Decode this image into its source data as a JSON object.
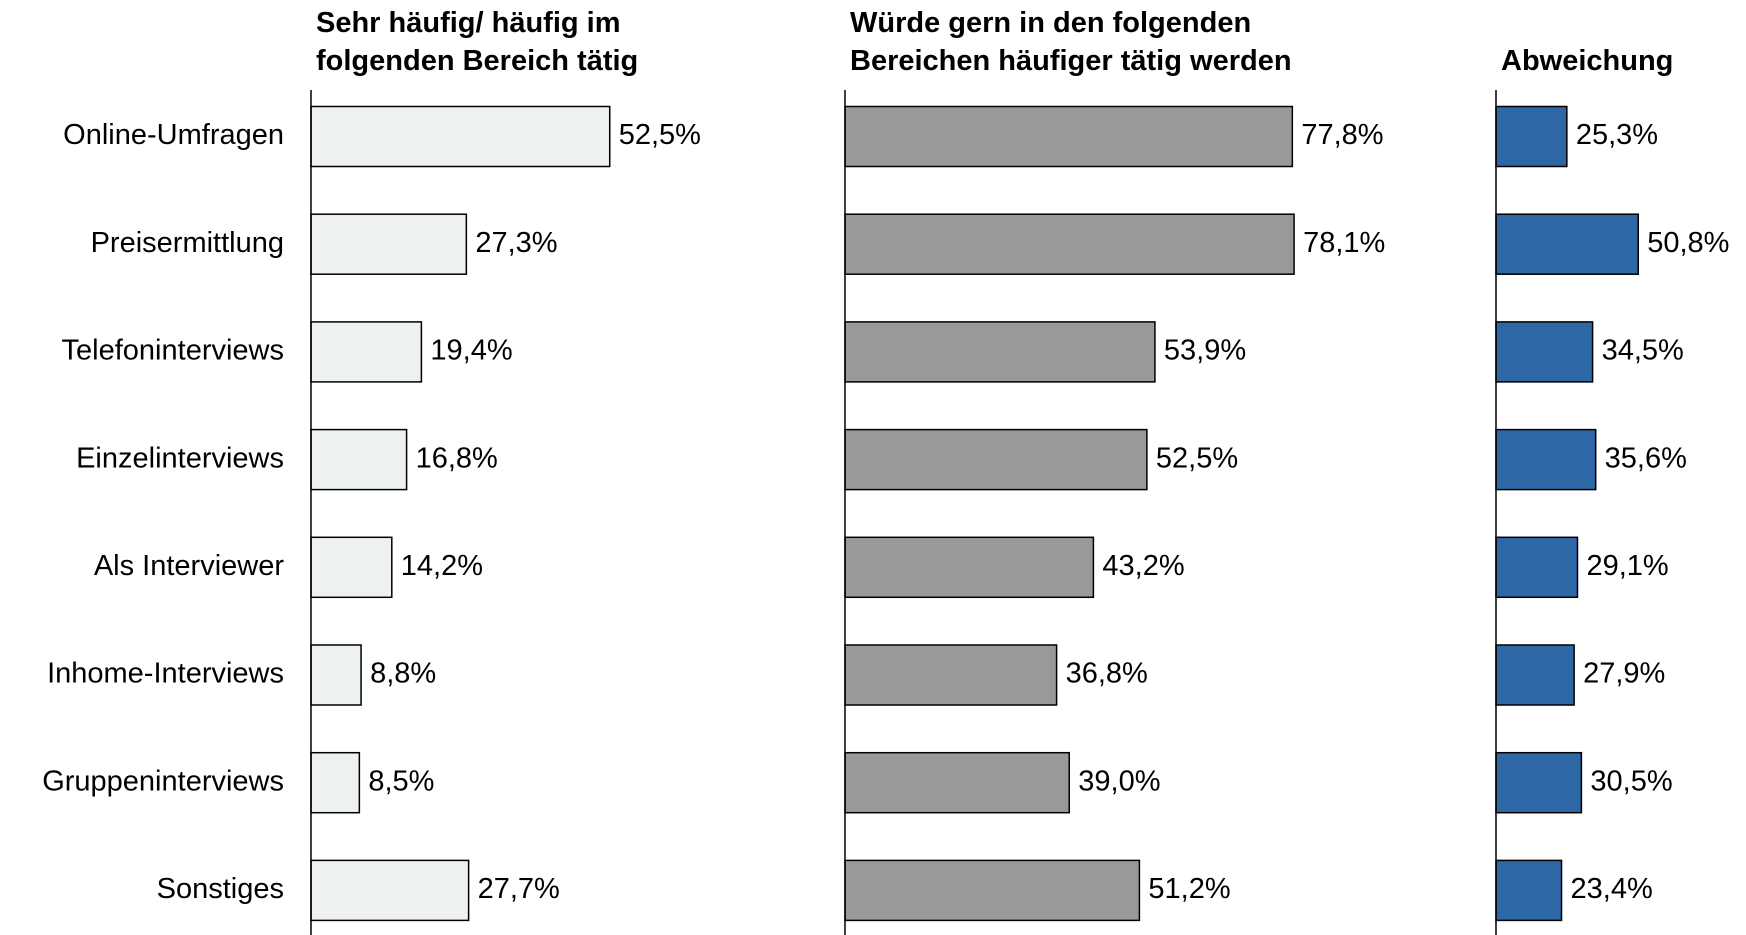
{
  "chart_data": {
    "type": "bar",
    "orientation": "horizontal",
    "categories": [
      "Online-Umfragen",
      "Preisermittlung",
      "Telefoninterviews",
      "Einzelinterviews",
      "Als Interviewer",
      "Inhome-Interviews",
      "Gruppeninterviews",
      "Sonstiges"
    ],
    "xlim": [
      0,
      100
    ],
    "series": [
      {
        "name": "Sehr häufig/ häufig im\nfolgenden Bereich tätig",
        "color": "#eef1f2",
        "values": [
          52.5,
          27.3,
          19.4,
          16.8,
          14.2,
          8.8,
          8.5,
          27.7
        ],
        "value_labels": [
          "52,5%",
          "27,3%",
          "19,4%",
          "16,8%",
          "14,2%",
          "8,8%",
          "8,5%",
          "27,7%"
        ]
      },
      {
        "name": "Würde gern in den folgenden\nBereichen häufiger tätig werden",
        "color": "#999999",
        "values": [
          77.8,
          78.1,
          53.9,
          52.5,
          43.2,
          36.8,
          39.0,
          51.2
        ],
        "value_labels": [
          "77,8%",
          "78,1%",
          "53,9%",
          "52,5%",
          "43,2%",
          "36,8%",
          "39,0%",
          "51,2%"
        ]
      },
      {
        "name": "Abweichung",
        "color": "#2e67a6",
        "values": [
          25.3,
          50.8,
          34.5,
          35.6,
          29.1,
          27.9,
          30.5,
          23.4
        ],
        "value_labels": [
          "25,3%",
          "50,8%",
          "34,5%",
          "35,6%",
          "29,1%",
          "27,9%",
          "30,5%",
          "23,4%"
        ]
      }
    ]
  }
}
